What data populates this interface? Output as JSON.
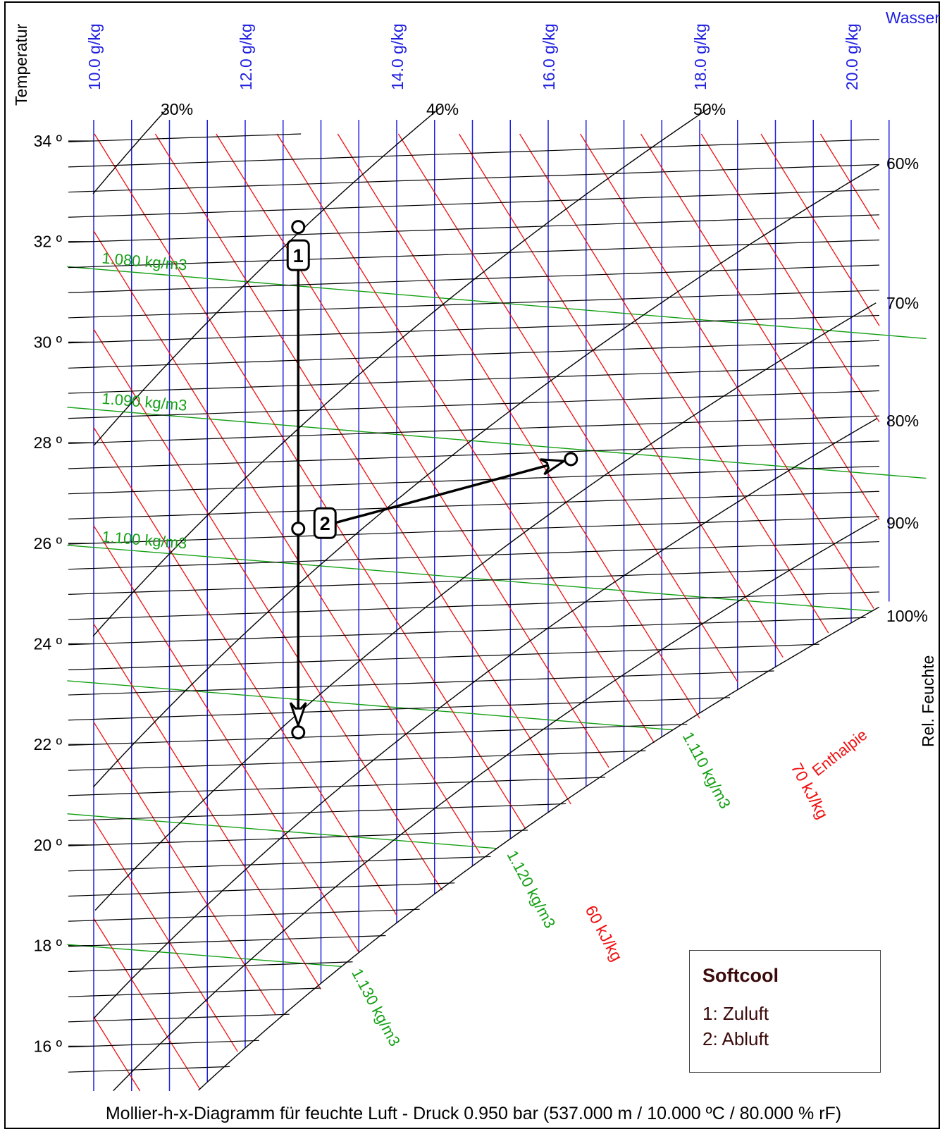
{
  "chart_data": {
    "type": "psychrometric",
    "y_axis_label": "Temperatur",
    "x_axis_label": "Wasser",
    "right_axis_label": "Rel. Feuchte",
    "enthalpy_label": "Enthalpie",
    "footer": "Mollier-h-x-Diagramm für feuchte Luft - Druck  0.950 bar (537.000 m / 10.000 ºC / 80.000 % rF)",
    "x_range_gkg": [
      10.0,
      21.0
    ],
    "temperature_range_c": [
      15.0,
      34.5
    ],
    "temperature_ticks": [
      {
        "t": 34,
        "label": "34 º"
      },
      {
        "t": 32,
        "label": "32 º"
      },
      {
        "t": 30,
        "label": "30 º"
      },
      {
        "t": 28,
        "label": "28 º"
      },
      {
        "t": 26,
        "label": "26 º"
      },
      {
        "t": 24,
        "label": "24 º"
      },
      {
        "t": 22,
        "label": "22 º"
      },
      {
        "t": 20,
        "label": "20 º"
      },
      {
        "t": 18,
        "label": "18 º"
      },
      {
        "t": 16,
        "label": "16 º"
      }
    ],
    "x_ticks": [
      {
        "x": 10,
        "label": "10.0 g/kg"
      },
      {
        "x": 12,
        "label": "12.0 g/kg"
      },
      {
        "x": 14,
        "label": "14.0 g/kg"
      },
      {
        "x": 16,
        "label": "16.0 g/kg"
      },
      {
        "x": 18,
        "label": "18.0 g/kg"
      },
      {
        "x": 20,
        "label": "20.0 g/kg"
      }
    ],
    "rh_curves": [
      {
        "rh": 30,
        "label": "30%"
      },
      {
        "rh": 40,
        "label": "40%"
      },
      {
        "rh": 50,
        "label": "50%"
      },
      {
        "rh": 60,
        "label": "60%"
      },
      {
        "rh": 70,
        "label": "70%"
      },
      {
        "rh": 80,
        "label": "80%"
      },
      {
        "rh": 90,
        "label": "90%"
      },
      {
        "rh": 100,
        "label": "100%"
      }
    ],
    "density_lines": [
      {
        "rho": 1.08,
        "label": "1.080 kg/m3"
      },
      {
        "rho": 1.09,
        "label": "1.090 kg/m3"
      },
      {
        "rho": 1.1,
        "label": "1.100 kg/m3"
      },
      {
        "rho": 1.11,
        "label": "1.110 kg/m3"
      },
      {
        "rho": 1.12,
        "label": "1.120 kg/m3"
      },
      {
        "rho": 1.13,
        "label": "1.130 kg/m3"
      }
    ],
    "enthalpy_labels": [
      {
        "h": 60,
        "label": "60 kJ/kg"
      },
      {
        "h": 70,
        "label": "70 kJ/kg"
      }
    ],
    "points": [
      {
        "id": "1",
        "x": 12.7,
        "t": 32.15
      },
      {
        "id": "1_end",
        "x": 12.7,
        "t": 22.1
      },
      {
        "id": "2",
        "x": 12.7,
        "t": 26.15
      },
      {
        "id": "2_end",
        "x": 16.3,
        "t": 27.35
      }
    ],
    "point_labels": [
      {
        "id": "1",
        "label": "1"
      },
      {
        "id": "2",
        "label": "2"
      }
    ]
  },
  "legend": {
    "title": "Softcool",
    "items": [
      "1: Zuluft",
      "2: Abluft"
    ]
  }
}
